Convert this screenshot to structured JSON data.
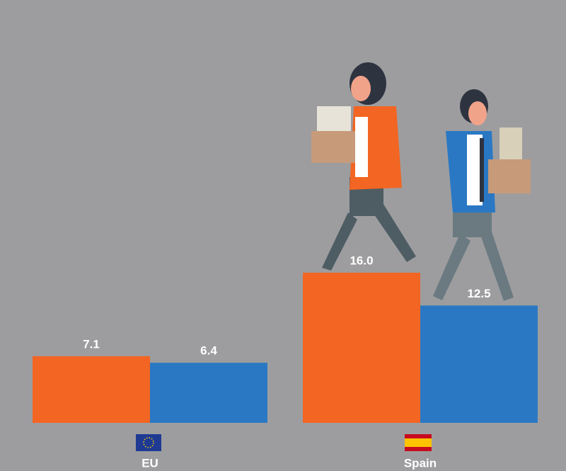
{
  "chart_data": {
    "type": "bar",
    "categories": [
      "EU",
      "Spain"
    ],
    "series": [
      {
        "color": "#f26522",
        "values": [
          7.1,
          16.0
        ],
        "value_labels": [
          "7.1",
          "16.0"
        ]
      },
      {
        "color": "#2a78c4",
        "values": [
          6.4,
          12.5
        ]
      }
    ]
  }
}
